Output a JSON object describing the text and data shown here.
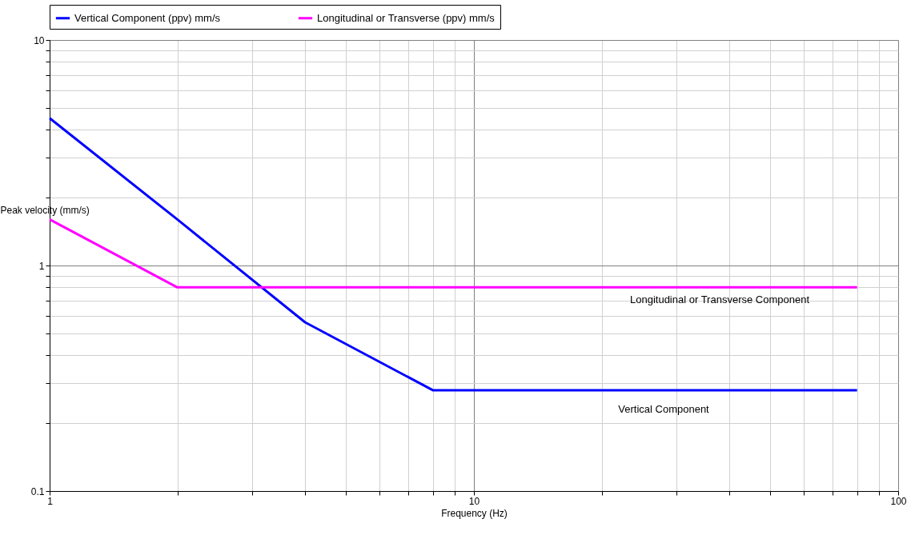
{
  "chart_data": {
    "type": "line",
    "xlabel": "Frequency (Hz)",
    "ylabel": "Peak velocity (mm/s)",
    "log": "xy",
    "grid": true,
    "legend": "top",
    "line_style": "solid",
    "marker": "none",
    "xlim": [
      1,
      100
    ],
    "ylim": [
      0.1,
      10
    ],
    "xticks": [
      1,
      {
        "value": 2,
        "label": null
      },
      {
        "value": 3,
        "label": null
      },
      {
        "value": 4,
        "label": null
      },
      {
        "value": 5,
        "label": null
      },
      {
        "value": 6,
        "label": null
      },
      {
        "value": 7,
        "label": null
      },
      {
        "value": 8,
        "label": null
      },
      {
        "value": 9,
        "label": null
      },
      10,
      {
        "value": 20,
        "label": null
      },
      {
        "value": 30,
        "label": null
      },
      {
        "value": 40,
        "label": null
      },
      {
        "value": 50,
        "label": null
      },
      {
        "value": 60,
        "label": null
      },
      {
        "value": 70,
        "label": null
      },
      {
        "value": 80,
        "label": null
      },
      {
        "value": 90,
        "label": null
      },
      100
    ],
    "yticks": [
      0.1,
      {
        "value": 0.2,
        "label": null
      },
      {
        "value": 0.3,
        "label": null
      },
      {
        "value": 0.4,
        "label": null
      },
      {
        "value": 0.5,
        "label": null
      },
      {
        "value": 0.6,
        "label": null
      },
      {
        "value": 0.7,
        "label": null
      },
      {
        "value": 0.8,
        "label": null
      },
      {
        "value": 0.9,
        "label": null
      },
      1,
      {
        "value": 2,
        "label": null
      },
      {
        "value": 3,
        "label": null
      },
      {
        "value": 4,
        "label": null
      },
      {
        "value": 5,
        "label": null
      },
      {
        "value": 6,
        "label": null
      },
      {
        "value": 7,
        "label": null
      },
      {
        "value": 8,
        "label": null
      },
      {
        "value": 9,
        "label": null
      },
      10
    ],
    "series": [
      {
        "name": "Vertical Component (ppv) mm/s",
        "color": "#0000ff",
        "x": [
          1,
          2,
          4,
          8,
          80
        ],
        "values": [
          4.5,
          1.6,
          0.56,
          0.28,
          0.28
        ]
      },
      {
        "name": "Longitudinal or Transverse (ppv) mm/s",
        "color": "#ff00ff",
        "x": [
          1,
          2,
          80
        ],
        "values": [
          1.6,
          0.8,
          0.8
        ]
      }
    ],
    "annotations": [
      "Longitudinal or Transverse Component",
      "Vertical Component"
    ]
  }
}
